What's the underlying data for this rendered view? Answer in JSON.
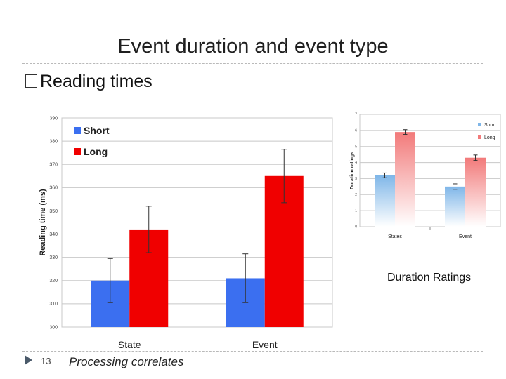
{
  "slide": {
    "title": "Event duration and event type",
    "bullet": "Reading times",
    "page_number": "13",
    "footer": "Processing correlates",
    "ratings_caption": "Duration Ratings"
  },
  "chart_data": [
    {
      "type": "bar",
      "title": "",
      "xlabel": "",
      "ylabel": "Reading time (ms)",
      "categories": [
        "State",
        "Event"
      ],
      "ylim": [
        300,
        390
      ],
      "yticks": [
        300,
        310,
        320,
        330,
        340,
        350,
        360,
        370,
        380,
        390
      ],
      "series": [
        {
          "name": "Short",
          "color": "#3b6ff0",
          "values": [
            320,
            321
          ],
          "error": [
            9.5,
            10.5
          ]
        },
        {
          "name": "Long",
          "color": "#f00000",
          "values": [
            342,
            365
          ],
          "error": [
            10,
            11.5
          ]
        }
      ],
      "legend": "top-left",
      "grid": true
    },
    {
      "type": "bar",
      "title": "",
      "xlabel": "",
      "ylabel": "Duration ratings",
      "categories": [
        "States",
        "Event"
      ],
      "ylim": [
        0,
        7
      ],
      "yticks": [
        0,
        1,
        2,
        3,
        4,
        5,
        6,
        7
      ],
      "series": [
        {
          "name": "Short",
          "color": "#7fb6e8",
          "values": [
            3.2,
            2.5
          ],
          "error": [
            0.15,
            0.17
          ]
        },
        {
          "name": "Long",
          "color": "#f27a7a",
          "values": [
            5.9,
            4.3
          ],
          "error": [
            0.15,
            0.17
          ]
        }
      ],
      "legend": "top-right",
      "grid": true
    }
  ]
}
